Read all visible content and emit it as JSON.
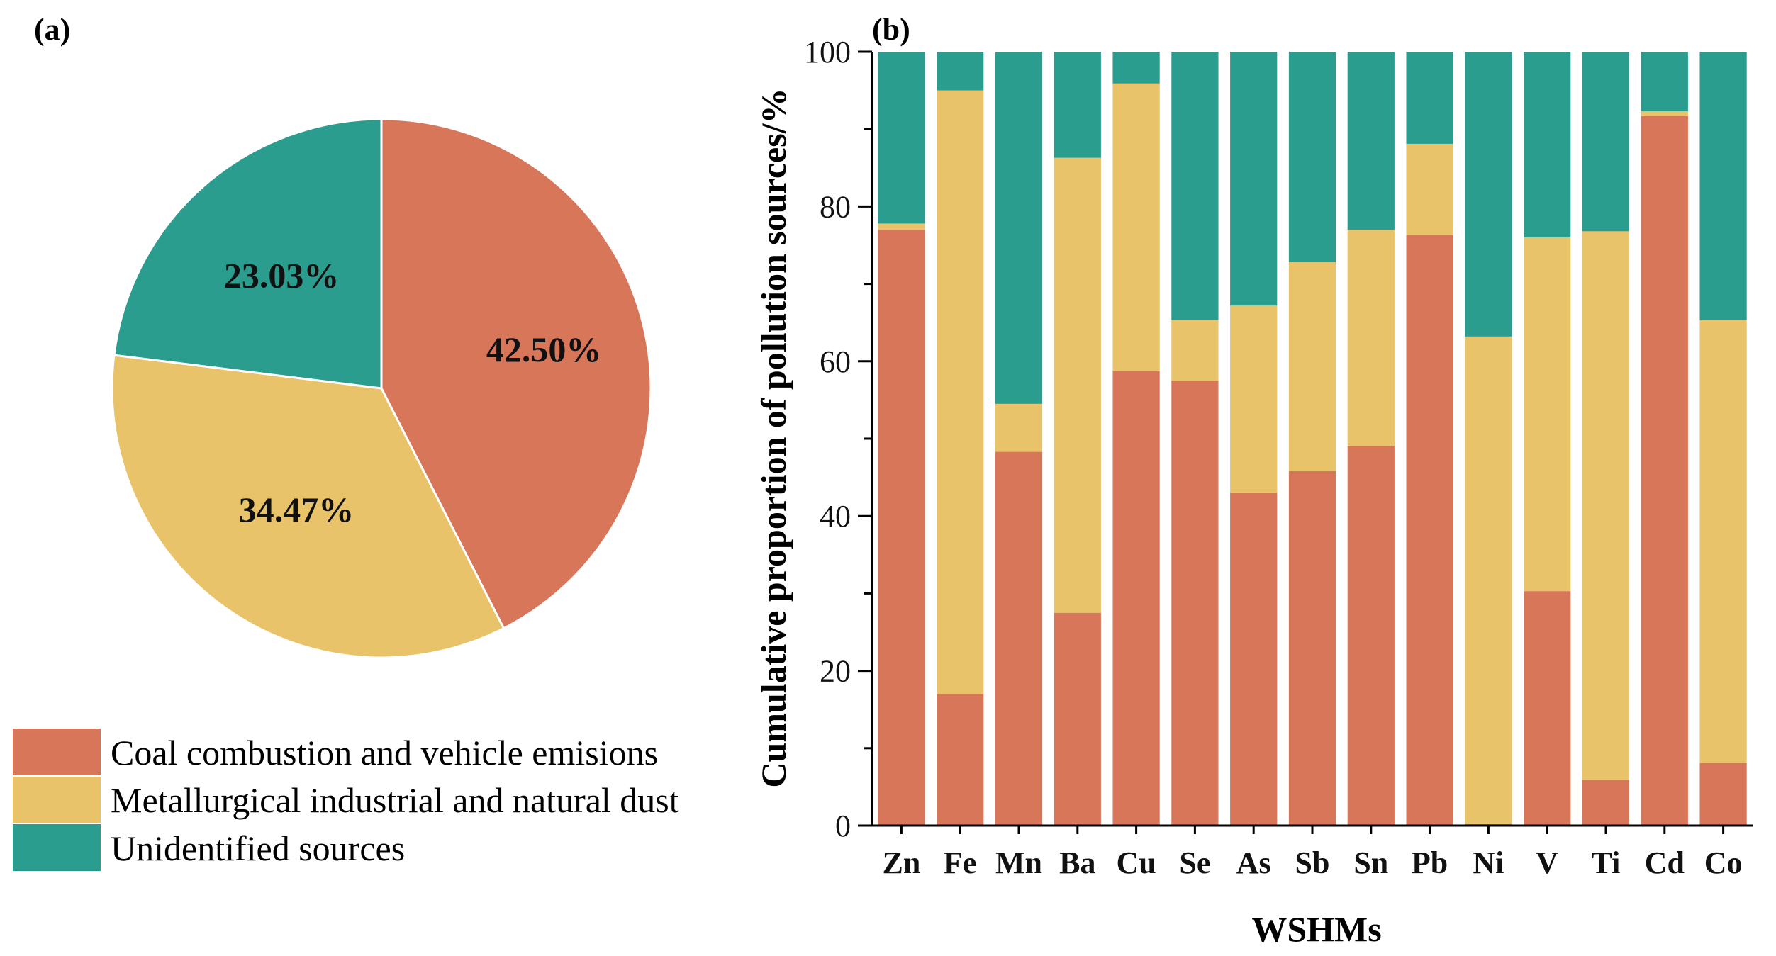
{
  "chart_data": [
    {
      "type": "pie",
      "panel_label": "(a)",
      "slices": [
        {
          "label": "Coal combustion and vehicle emisions",
          "value": 42.5,
          "display": "42.50%",
          "color": "#D8765A"
        },
        {
          "label": "Metallurgical industrial and natural dust",
          "value": 34.47,
          "display": "34.47%",
          "color": "#E8C36A"
        },
        {
          "label": "Unidentified sources",
          "value": 23.03,
          "display": "23.03%",
          "color": "#2A9D8F"
        }
      ],
      "legend": [
        {
          "label": "Coal combustion and vehicle emisions",
          "color": "#D8765A"
        },
        {
          "label": "Metallurgical industrial and natural dust",
          "color": "#E8C36A"
        },
        {
          "label": "Unidentified sources",
          "color": "#2A9D8F"
        }
      ]
    },
    {
      "type": "bar",
      "stacked": true,
      "panel_label": "(b)",
      "categories": [
        "Zn",
        "Fe",
        "Mn",
        "Ba",
        "Cu",
        "Se",
        "As",
        "Sb",
        "Sn",
        "Pb",
        "Ni",
        "V",
        "Ti",
        "Cd",
        "Co"
      ],
      "series": [
        {
          "name": "Coal combustion and vehicle emisions",
          "color": "#D8765A",
          "values": [
            77.0,
            17.0,
            48.3,
            27.5,
            58.7,
            57.5,
            43.0,
            45.8,
            49.0,
            76.3,
            0.2,
            30.3,
            5.9,
            91.7,
            8.1
          ]
        },
        {
          "name": "Metallurgical industrial and natural dust",
          "color": "#E8C36A",
          "values": [
            0.8,
            78.0,
            6.2,
            58.8,
            37.2,
            7.8,
            24.2,
            27.0,
            28.0,
            11.8,
            63.0,
            45.7,
            70.9,
            0.6,
            57.2
          ]
        },
        {
          "name": "Unidentified sources",
          "color": "#2A9D8F",
          "values": [
            22.2,
            5.0,
            45.5,
            13.7,
            4.1,
            34.7,
            32.8,
            27.2,
            23.0,
            11.9,
            36.8,
            24.0,
            23.2,
            7.7,
            34.7
          ]
        }
      ],
      "xlabel": "WSHMs",
      "ylabel": "Cumulative proportion of pollution sources/%",
      "ylim": [
        0,
        100
      ],
      "yticks": [
        0,
        20,
        40,
        60,
        80,
        100
      ],
      "grid": false
    }
  ]
}
